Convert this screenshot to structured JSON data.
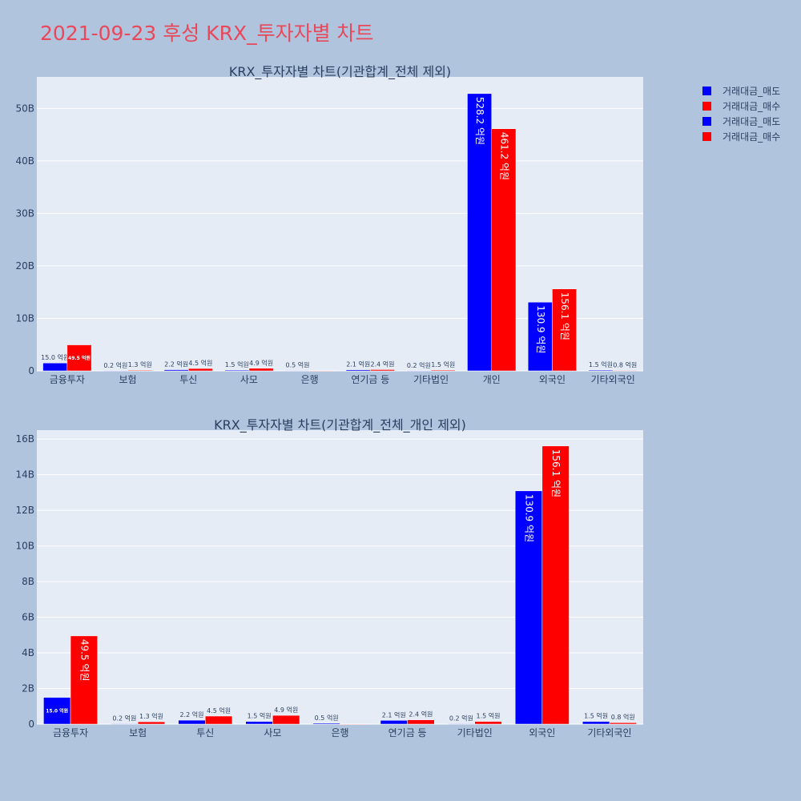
{
  "title": "2021-09-23 후성 KRX_투자자별 차트",
  "legend": [
    {
      "label": "거래대금_매도",
      "color": "#0000ff"
    },
    {
      "label": "거래대금_매수",
      "color": "#ff0000"
    },
    {
      "label": "거래대금_매도",
      "color": "#0000ff"
    },
    {
      "label": "거래대금_매수",
      "color": "#ff0000"
    }
  ],
  "colors": {
    "sell": "#0000ff",
    "buy": "#ff0000",
    "plot_bg": "#e5ecf6",
    "page_bg": "#b0c4de",
    "title": "#e8485a"
  },
  "chart_data": [
    {
      "type": "bar",
      "title": "KRX_투자자별 차트(기관합계_전체 제외)",
      "categories": [
        "금융투자",
        "보험",
        "투신",
        "사모",
        "은행",
        "연기금 등",
        "기타법인",
        "개인",
        "외국인",
        "기타외국인"
      ],
      "ylim": [
        0,
        56000000000
      ],
      "yticks": [
        0,
        10000000000,
        20000000000,
        30000000000,
        40000000000,
        50000000000
      ],
      "ytick_labels": [
        "0",
        "10B",
        "20B",
        "30B",
        "40B",
        "50B"
      ],
      "legend_position": "top-right",
      "series": [
        {
          "name": "거래대금_매도",
          "values": [
            1500000000,
            20000000,
            220000000,
            150000000,
            50000000,
            210000000,
            20000000,
            52820000000,
            13090000000,
            150000000
          ],
          "labels": [
            "15.0 억원",
            "0.2 억원",
            "2.2 억원",
            "1.5 억원",
            "0.5 억원",
            "2.1 억원",
            "0.2 억원",
            "528.2 억원",
            "130.9 억원",
            "1.5 억원"
          ]
        },
        {
          "name": "거래대금_매수",
          "values": [
            4950000000,
            130000000,
            450000000,
            490000000,
            0,
            240000000,
            150000000,
            46120000000,
            15610000000,
            80000000
          ],
          "labels": [
            "49.5 억원",
            "1.3 억원",
            "4.5 억원",
            "4.9 억원",
            "",
            "2.4 억원",
            "1.5 억원",
            "461.2 억원",
            "156.1 억원",
            "0.8 억원"
          ]
        }
      ]
    },
    {
      "type": "bar",
      "title": "KRX_투자자별 차트(기관합계_전체_개인 제외)",
      "categories": [
        "금융투자",
        "보험",
        "투신",
        "사모",
        "은행",
        "연기금 등",
        "기타법인",
        "외국인",
        "기타외국인"
      ],
      "ylim": [
        0,
        16500000000
      ],
      "yticks": [
        0,
        2000000000,
        4000000000,
        6000000000,
        8000000000,
        10000000000,
        12000000000,
        14000000000,
        16000000000
      ],
      "ytick_labels": [
        "0",
        "2B",
        "4B",
        "6B",
        "8B",
        "10B",
        "12B",
        "14B",
        "16B"
      ],
      "series": [
        {
          "name": "거래대금_매도",
          "values": [
            1500000000,
            20000000,
            220000000,
            150000000,
            50000000,
            210000000,
            20000000,
            13090000000,
            150000000
          ],
          "labels": [
            "15.0 억원",
            "0.2 억원",
            "2.2 억원",
            "1.5 억원",
            "0.5 억원",
            "2.1 억원",
            "0.2 억원",
            "130.9 억원",
            "1.5 억원"
          ]
        },
        {
          "name": "거래대금_매수",
          "values": [
            4950000000,
            130000000,
            450000000,
            490000000,
            0,
            240000000,
            150000000,
            15610000000,
            80000000
          ],
          "labels": [
            "49.5 억원",
            "1.3 억원",
            "4.5 억원",
            "4.9 억원",
            "",
            "2.4 억원",
            "1.5 억원",
            "156.1 억원",
            "0.8 억원"
          ]
        }
      ]
    }
  ]
}
